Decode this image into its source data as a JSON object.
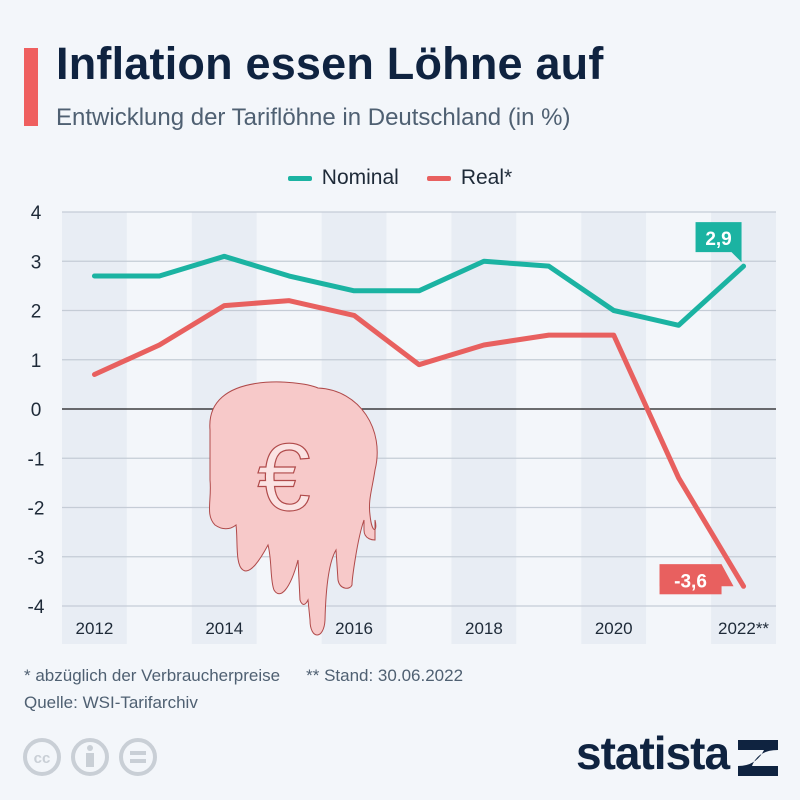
{
  "header": {
    "title": "Inflation essen Löhne auf",
    "subtitle": "Entwicklung der Tariflöhne in Deutschland (in %)"
  },
  "footer": {
    "note1": "* abzüglich der Verbraucherpreise",
    "note2": "** Stand: 30.06.2022",
    "source": "Quelle: WSI-Tarifarchiv",
    "brand": "statista",
    "license_icons": [
      "cc-icon",
      "by-icon",
      "nd-icon"
    ]
  },
  "colors": {
    "nominal": "#1bb3a2",
    "real": "#e8605f",
    "title": "#0f2340"
  },
  "chart_data": {
    "type": "line",
    "x": [
      2012,
      2013,
      2014,
      2015,
      2016,
      2017,
      2018,
      2019,
      2020,
      2021,
      2022
    ],
    "x_tick_labels": [
      "2012",
      "",
      "2014",
      "",
      "2016",
      "",
      "2018",
      "",
      "2020",
      "",
      "2022**"
    ],
    "series": [
      {
        "name": "Nominal",
        "values": [
          2.7,
          2.7,
          3.1,
          2.7,
          2.4,
          2.4,
          3.0,
          2.9,
          2.0,
          1.7,
          2.9
        ],
        "end_label": "2,9"
      },
      {
        "name": "Real*",
        "values": [
          0.7,
          1.3,
          2.1,
          2.2,
          1.9,
          0.9,
          1.3,
          1.5,
          1.5,
          -1.4,
          -3.6
        ],
        "end_label": "-3,6"
      }
    ],
    "ylim": [
      -4,
      4
    ],
    "y_ticks": [
      4,
      3,
      2,
      1,
      0,
      -1,
      -2,
      -3,
      -4
    ],
    "y_tick_labels": [
      "4",
      "3",
      "2",
      "1",
      "0",
      "-1",
      "-2",
      "-3",
      "-4"
    ],
    "grid": true,
    "legend": "top-center"
  }
}
